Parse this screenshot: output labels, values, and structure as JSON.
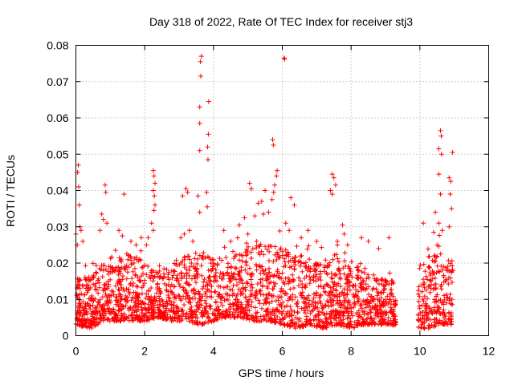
{
  "chart_data": {
    "type": "scatter",
    "title": "Day 318 of 2022, Rate Of TEC Index for receiver stj3",
    "xlabel": "GPS time / hours",
    "ylabel": "ROTI / TECUs",
    "xlim": [
      0,
      12
    ],
    "ylim": [
      0,
      0.08
    ],
    "xticks": [
      "0",
      "2",
      "4",
      "6",
      "8",
      "10",
      "12"
    ],
    "yticks": [
      "0",
      "0.01",
      "0.02",
      "0.03",
      "0.04",
      "0.05",
      "0.06",
      "0.07",
      "0.08"
    ],
    "grid": true,
    "marker": "+",
    "color": "#ff0000",
    "coverage": {
      "gap_hours": [
        9.3,
        9.95
      ],
      "note": "dense scatter 0-11 h, mostly 0.003-0.02 TECUs"
    },
    "series": [
      {
        "name": "stj3",
        "points": [
          [
            3.65,
            0.077
          ],
          [
            3.62,
            0.0755
          ],
          [
            3.63,
            0.0715
          ],
          [
            3.6,
            0.063
          ],
          [
            3.6,
            0.0585
          ],
          [
            3.86,
            0.0645
          ],
          [
            3.85,
            0.0555
          ],
          [
            3.83,
            0.052
          ],
          [
            3.6,
            0.051
          ],
          [
            3.84,
            0.0485
          ],
          [
            3.8,
            0.0395
          ],
          [
            3.55,
            0.0385
          ],
          [
            3.82,
            0.0355
          ],
          [
            3.6,
            0.034
          ],
          [
            6.05,
            0.0765
          ],
          [
            6.07,
            0.0762
          ],
          [
            5.72,
            0.054
          ],
          [
            5.74,
            0.0525
          ],
          [
            5.85,
            0.0455
          ],
          [
            5.83,
            0.044
          ],
          [
            5.78,
            0.0415
          ],
          [
            5.75,
            0.0395
          ],
          [
            5.7,
            0.0375
          ],
          [
            5.6,
            0.034
          ],
          [
            6.25,
            0.038
          ],
          [
            6.35,
            0.036
          ],
          [
            5.05,
            0.042
          ],
          [
            5.1,
            0.0405
          ],
          [
            5.5,
            0.04
          ],
          [
            5.4,
            0.037
          ],
          [
            5.3,
            0.0365
          ],
          [
            5.45,
            0.0335
          ],
          [
            5.2,
            0.033
          ],
          [
            4.9,
            0.0325
          ],
          [
            4.75,
            0.0305
          ],
          [
            5.0,
            0.028
          ],
          [
            5.25,
            0.026
          ],
          [
            6.1,
            0.031
          ],
          [
            6.2,
            0.029
          ],
          [
            10.6,
            0.0565
          ],
          [
            10.62,
            0.055
          ],
          [
            10.55,
            0.0515
          ],
          [
            10.63,
            0.05
          ],
          [
            10.95,
            0.0505
          ],
          [
            10.55,
            0.0445
          ],
          [
            10.85,
            0.0435
          ],
          [
            10.9,
            0.0425
          ],
          [
            10.6,
            0.039
          ],
          [
            10.88,
            0.039
          ],
          [
            10.45,
            0.034
          ],
          [
            10.55,
            0.031
          ],
          [
            10.65,
            0.029
          ],
          [
            10.4,
            0.0285
          ],
          [
            10.1,
            0.031
          ],
          [
            10.92,
            0.035
          ],
          [
            10.85,
            0.03
          ],
          [
            10.5,
            0.025
          ],
          [
            7.45,
            0.0445
          ],
          [
            7.5,
            0.0435
          ],
          [
            7.55,
            0.0415
          ],
          [
            7.45,
            0.039
          ],
          [
            7.4,
            0.04
          ],
          [
            7.75,
            0.0305
          ],
          [
            7.8,
            0.028
          ],
          [
            7.6,
            0.026
          ],
          [
            7.9,
            0.025
          ],
          [
            2.25,
            0.0455
          ],
          [
            2.27,
            0.044
          ],
          [
            2.3,
            0.042
          ],
          [
            2.25,
            0.04
          ],
          [
            2.28,
            0.0385
          ],
          [
            2.3,
            0.036
          ],
          [
            2.27,
            0.0345
          ],
          [
            2.2,
            0.031
          ],
          [
            2.25,
            0.029
          ],
          [
            2.1,
            0.027
          ],
          [
            3.2,
            0.0405
          ],
          [
            3.25,
            0.0395
          ],
          [
            3.1,
            0.0385
          ],
          [
            3.3,
            0.029
          ],
          [
            3.15,
            0.028
          ],
          [
            3.05,
            0.027
          ],
          [
            3.4,
            0.026
          ],
          [
            0.07,
            0.047
          ],
          [
            0.05,
            0.045
          ],
          [
            0.08,
            0.041
          ],
          [
            0.1,
            0.036
          ],
          [
            0.12,
            0.03
          ],
          [
            0.15,
            0.029
          ],
          [
            0.0,
            0.028
          ],
          [
            0.2,
            0.026
          ],
          [
            0.04,
            0.025
          ],
          [
            0.85,
            0.0415
          ],
          [
            0.87,
            0.0395
          ],
          [
            0.75,
            0.0335
          ],
          [
            0.8,
            0.032
          ],
          [
            0.9,
            0.031
          ],
          [
            0.7,
            0.029
          ],
          [
            1.4,
            0.039
          ],
          [
            1.25,
            0.029
          ],
          [
            1.35,
            0.0275
          ],
          [
            1.6,
            0.026
          ],
          [
            1.75,
            0.025
          ],
          [
            1.9,
            0.027
          ],
          [
            2.05,
            0.025
          ],
          [
            8.3,
            0.027
          ],
          [
            8.5,
            0.026
          ],
          [
            9.1,
            0.027
          ],
          [
            8.8,
            0.024
          ],
          [
            7.0,
            0.026
          ],
          [
            6.55,
            0.027
          ],
          [
            6.75,
            0.029
          ],
          [
            4.3,
            0.029
          ],
          [
            4.5,
            0.026
          ]
        ],
        "segments": [
          [
            0.0,
            0.003,
            0.017
          ],
          [
            0.45,
            0.002,
            0.016
          ],
          [
            0.8,
            0.004,
            0.02
          ],
          [
            1.2,
            0.004,
            0.024
          ],
          [
            1.6,
            0.004,
            0.022
          ],
          [
            2.0,
            0.004,
            0.021
          ],
          [
            2.4,
            0.005,
            0.018
          ],
          [
            2.8,
            0.004,
            0.019
          ],
          [
            3.2,
            0.004,
            0.022
          ],
          [
            3.6,
            0.003,
            0.024
          ],
          [
            4.0,
            0.004,
            0.021
          ],
          [
            4.4,
            0.005,
            0.022
          ],
          [
            4.8,
            0.005,
            0.024
          ],
          [
            5.2,
            0.004,
            0.025
          ],
          [
            5.6,
            0.004,
            0.026
          ],
          [
            6.0,
            0.003,
            0.024
          ],
          [
            6.4,
            0.002,
            0.022
          ],
          [
            6.8,
            0.003,
            0.022
          ],
          [
            7.2,
            0.002,
            0.021
          ],
          [
            7.6,
            0.003,
            0.023
          ],
          [
            8.0,
            0.002,
            0.019
          ],
          [
            8.4,
            0.003,
            0.019
          ],
          [
            8.8,
            0.003,
            0.016
          ],
          [
            9.1,
            0.003,
            0.015
          ],
          [
            9.95,
            0.002,
            0.02
          ],
          [
            10.3,
            0.002,
            0.022
          ],
          [
            10.6,
            0.003,
            0.023
          ],
          [
            10.85,
            0.003,
            0.021
          ]
        ]
      }
    ]
  }
}
